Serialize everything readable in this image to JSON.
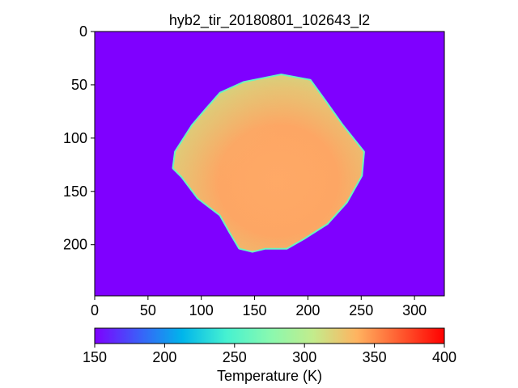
{
  "chart_data": [
    {
      "type": "heatmap",
      "title": "hyb2_tir_20180801_102643_l2",
      "x_ticks": [
        "0",
        "50",
        "100",
        "150",
        "200",
        "250",
        "300"
      ],
      "x_tick_values": [
        0,
        50,
        100,
        150,
        200,
        250,
        300
      ],
      "y_ticks": [
        "0",
        "50",
        "100",
        "150",
        "200"
      ],
      "y_tick_values": [
        0,
        50,
        100,
        150,
        200
      ],
      "xlim": [
        0,
        328
      ],
      "ylim": [
        248,
        0
      ],
      "background_value": 150,
      "object_outline": [
        [
          140,
          48
        ],
        [
          175,
          41
        ],
        [
          202,
          46
        ],
        [
          215,
          64
        ],
        [
          232,
          88
        ],
        [
          252,
          113
        ],
        [
          250,
          135
        ],
        [
          236,
          160
        ],
        [
          218,
          180
        ],
        [
          196,
          194
        ],
        [
          180,
          203
        ],
        [
          160,
          203
        ],
        [
          148,
          206
        ],
        [
          136,
          203
        ],
        [
          127,
          188
        ],
        [
          118,
          172
        ],
        [
          97,
          156
        ],
        [
          82,
          136
        ],
        [
          74,
          128
        ],
        [
          76,
          113
        ],
        [
          92,
          88
        ],
        [
          103,
          75
        ],
        [
          118,
          58
        ]
      ],
      "object_temperature_range": [
        275,
        360
      ]
    },
    {
      "type": "colorbar",
      "label": "Temperature (K)",
      "range": [
        150,
        400
      ],
      "ticks": [
        "150",
        "200",
        "250",
        "300",
        "350",
        "400"
      ],
      "tick_values": [
        150,
        200,
        250,
        300,
        350,
        400
      ],
      "colormap": "rainbow",
      "colormap_stops": [
        "#7f00ff",
        "#3c5df9",
        "#00b5eb",
        "#45f1d1",
        "#88f9b0",
        "#c3ec8c",
        "#ffb360",
        "#ff5a2f",
        "#ff0000"
      ]
    }
  ]
}
